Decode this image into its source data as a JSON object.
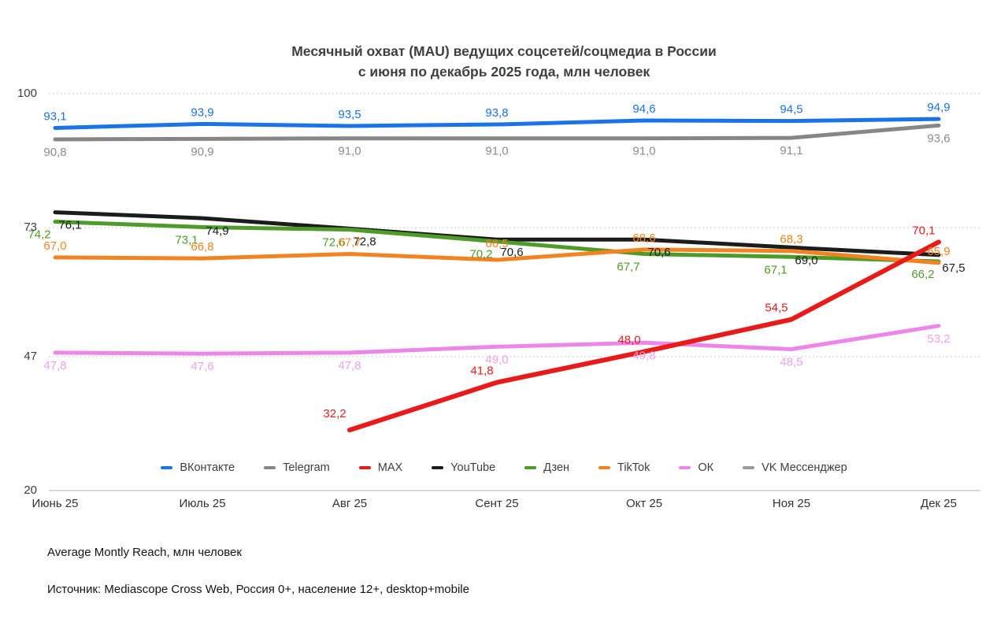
{
  "chart_data": {
    "type": "line",
    "title": "Месячный охват (MAU) ведущих соцсетей/соцмедиа в России",
    "subtitle": "с июня по декабрь 2025 года, млн человек",
    "categories": [
      "Июнь 25",
      "Июль 25",
      "Авг 25",
      "Сент 25",
      "Окт 25",
      "Ноя 25",
      "Дек 25"
    ],
    "yticks": [
      "100",
      "73",
      "47",
      "20"
    ],
    "ylim": [
      20,
      100
    ],
    "grid": "horizontal-dotted-at-100-73-47, solid-baseline-at-20",
    "legend_position": "bottom",
    "decimal_separator": ",",
    "series": [
      {
        "name": "ВКонтакте",
        "color": "#1a73e8",
        "label_color": "#1a73e8",
        "values": [
          93.1,
          93.9,
          93.5,
          93.8,
          94.6,
          94.5,
          94.9
        ],
        "label_side": "above",
        "label_dx": 0
      },
      {
        "name": "Telegram",
        "color": "#868686",
        "label_color": "#8c8c8c",
        "values": [
          90.8,
          90.9,
          91.0,
          91.0,
          91.0,
          91.1,
          93.6
        ],
        "label_side": "below",
        "label_dx": 0
      },
      {
        "name": "MAX",
        "color": "#e81b1b",
        "label_color": "#e81b1b",
        "values": [
          null,
          null,
          32.2,
          41.8,
          48.0,
          54.5,
          70.1
        ],
        "label_side": "above",
        "label_dx": -19,
        "label_overrides": {
          "2": {
            "dy": -6
          }
        }
      },
      {
        "name": "YouTube",
        "color": "#1c1c1c",
        "label_color": "#1c1c1c",
        "values": [
          76.1,
          74.9,
          72.8,
          70.6,
          70.6,
          69.0,
          67.5
        ],
        "label_side": "below",
        "label_dx": 19
      },
      {
        "name": "Дзен",
        "color": "#4e9b2a",
        "label_color": "#4e9b2a",
        "values": [
          74.2,
          73.1,
          72.6,
          70.2,
          67.7,
          67.1,
          66.2
        ],
        "label_side": "below",
        "label_dx": -20
      },
      {
        "name": "TikTok",
        "color": "#f58220",
        "label_color": "#f58220",
        "values": [
          67.0,
          66.8,
          67.7,
          66.5,
          68.6,
          68.3,
          65.9
        ],
        "label_side": "above",
        "label_dx": 0,
        "label_overrides": {
          "3": {
            "dy": -6
          }
        }
      },
      {
        "name": "ОК",
        "color": "#ee85e8",
        "label_color": "#f19fe9",
        "values": [
          47.8,
          47.6,
          47.8,
          49.0,
          49.8,
          48.5,
          53.2
        ],
        "label_side": "below",
        "label_dx": 0
      },
      {
        "name": "VK Мессенджер",
        "color": "#9a9a9a",
        "label_color": "#9a9a9a",
        "values": [
          null,
          null,
          null,
          null,
          null,
          null,
          null
        ],
        "label_side": "below",
        "label_dx": 0
      }
    ]
  },
  "footer": {
    "note": "Average Montly Reach, млн человек",
    "source": "Источник: Mediascope Cross Web, Россия 0+, население 12+, desktop+mobile"
  }
}
